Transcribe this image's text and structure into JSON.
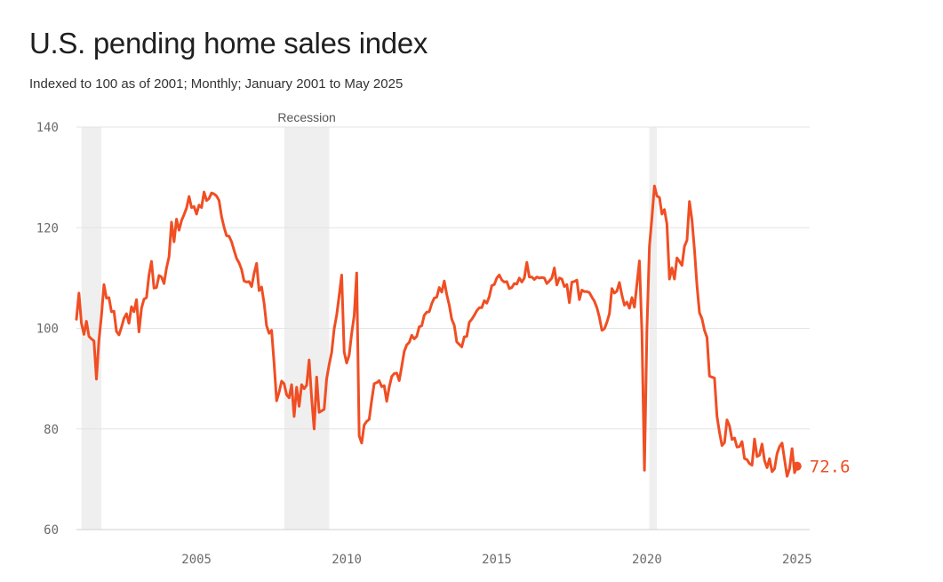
{
  "title": "U.S. pending home sales index",
  "subtitle": "Indexed to 100 as of 2001; Monthly; January 2001 to May 2025",
  "colors": {
    "line": "#f04e23",
    "recession": "#efefef",
    "grid": "#e3e3e3"
  },
  "chart_data": {
    "type": "line",
    "title": "U.S. pending home sales index",
    "subtitle": "Indexed to 100 as of 2001; Monthly; January 2001 to May 2025",
    "x_start": "2001-01",
    "x_end": "2025-05",
    "xlim": [
      2001,
      2025.42
    ],
    "ylim": [
      60,
      140
    ],
    "y_ticks": [
      60,
      80,
      100,
      120,
      140
    ],
    "x_ticks": [
      2005,
      2010,
      2015,
      2020,
      2025
    ],
    "grid": true,
    "recession_label": "Recession",
    "recessions": [
      [
        2001.17,
        2001.83
      ],
      [
        2007.92,
        2009.42
      ],
      [
        2020.08,
        2020.33
      ]
    ],
    "end_label": "72.6",
    "series": [
      {
        "values": [
          101.8,
          107,
          101,
          98.8,
          101.4,
          98.4,
          97.9,
          97.5,
          89.9,
          97.7,
          102.5,
          108.7,
          106,
          106.1,
          103.3,
          103.4,
          99.4,
          98.7,
          100.2,
          102,
          102.9,
          101,
          104.3,
          103.3,
          105.7,
          99.3,
          104,
          105.8,
          106.1,
          110.6,
          113.3,
          108,
          108.1,
          110.5,
          110.2,
          108.9,
          112,
          114.2,
          121.1,
          117.2,
          121.7,
          119.5,
          121.4,
          122.6,
          123.9,
          126.2,
          124,
          124.2,
          122.7,
          124.5,
          124,
          127.1,
          125.4,
          125.8,
          126.9,
          126.7,
          126.3,
          125.4,
          122.2,
          120.1,
          118.4,
          118.3,
          117.2,
          115.5,
          113.9,
          113,
          111.7,
          109.4,
          109.2,
          109.3,
          108.3,
          110.9,
          112.9,
          107.5,
          108.2,
          105,
          100.5,
          99,
          99.6,
          93,
          85.6,
          87.3,
          89.5,
          89,
          86.8,
          86.2,
          88.8,
          82.5,
          88.3,
          84.5,
          88.8,
          88,
          88.7,
          93.7,
          86.1,
          80,
          90.3,
          83.3,
          83.6,
          83.9,
          90,
          92.8,
          95.2,
          99.9,
          102.6,
          106.5,
          110.6,
          95.3,
          93.1,
          94.7,
          99,
          102.5,
          111,
          78.6,
          77.2,
          80.8,
          81.5,
          81.9,
          85.7,
          89,
          89.2,
          89.6,
          88.4,
          88.6,
          85.5,
          88.3,
          90.4,
          91,
          91.1,
          89.6,
          92.4,
          95.4,
          96.7,
          97.2,
          98.6,
          97.9,
          98.4,
          100.3,
          100.5,
          102.6,
          103.2,
          103.3,
          104.9,
          106,
          106.2,
          108.1,
          107.2,
          109.4,
          106.7,
          104.6,
          101.8,
          100.6,
          97.3,
          96.8,
          96.3,
          98.3,
          98.4,
          101.2,
          101.8,
          102.6,
          103.5,
          104.1,
          104.1,
          105.5,
          105,
          106.3,
          108.5,
          108.7,
          110,
          110.6,
          109.6,
          109.2,
          109.3,
          107.9,
          108.1,
          108.9,
          108.8,
          110,
          109.2,
          110,
          113.1,
          110.2,
          110.2,
          109.7,
          110.2,
          110,
          110.1,
          110,
          108.9,
          109.4,
          110,
          112,
          108.6,
          110,
          109.8,
          108.3,
          108.7,
          105.1,
          109.2,
          109.3,
          109.6,
          105.7,
          107.6,
          107.3,
          107.3,
          107.1,
          106.2,
          105.4,
          104.1,
          102.2,
          99.6,
          99.9,
          101.2,
          102.9,
          107.9,
          107,
          107.4,
          109.1,
          106.6,
          104.6,
          105.2,
          104,
          106.1,
          104.2,
          108.8,
          113.4,
          99.1,
          71.8,
          99.8,
          116.3,
          122,
          128.3,
          126.3,
          126,
          122.7,
          123.6,
          120.7,
          109.8,
          112,
          109.8,
          114,
          113.3,
          112.5,
          116.3,
          117.5,
          125.2,
          121.5,
          115.6,
          108.5,
          103.1,
          101.9,
          99.6,
          98.2,
          90.5,
          90.3,
          90.1,
          82.5,
          79.3,
          76.7,
          77.3,
          81.8,
          80.6,
          77.9,
          78.2,
          76.4,
          76.5,
          77.5,
          74.1,
          73.9,
          73.1,
          72.8,
          78,
          74.5,
          74.8,
          77,
          73.7,
          72.3,
          74.1,
          71.5,
          72.1,
          75.1,
          76.5,
          77.2,
          73.9,
          70.6,
          72.1,
          76.1,
          71.3,
          72.6
        ]
      }
    ]
  }
}
